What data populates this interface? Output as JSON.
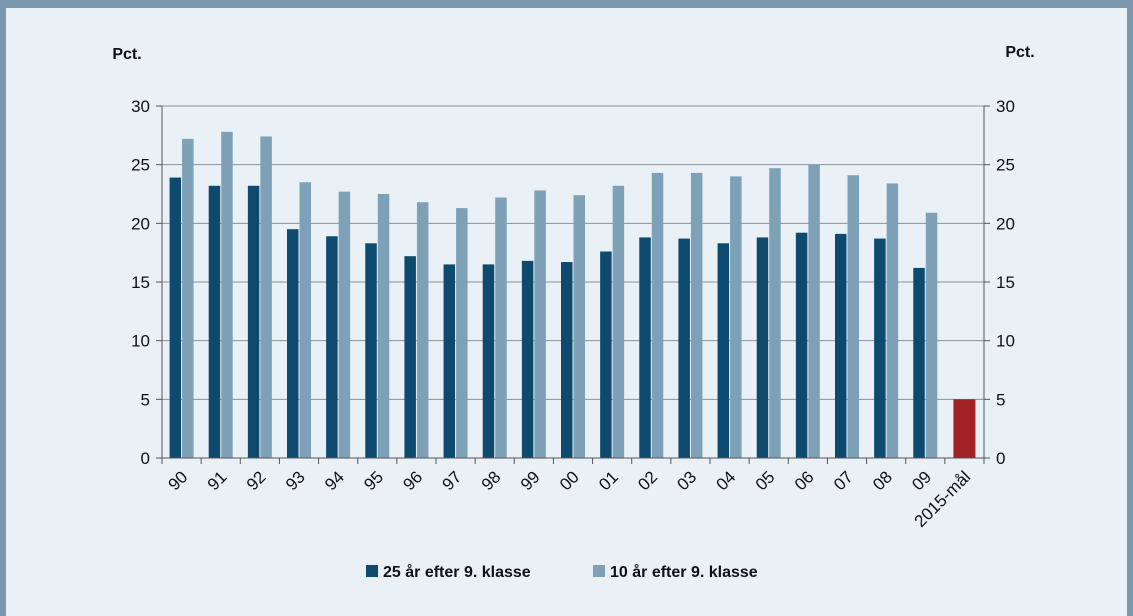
{
  "chart_data": {
    "type": "bar",
    "unit_left": "Pct.",
    "unit_right": "Pct.",
    "categories": [
      "90",
      "91",
      "92",
      "93",
      "94",
      "95",
      "96",
      "97",
      "98",
      "99",
      "00",
      "01",
      "02",
      "03",
      "04",
      "05",
      "06",
      "07",
      "08",
      "09",
      "2015-mål"
    ],
    "series": [
      {
        "name": "25 år efter 9. klasse",
        "color": "#0d4a6e",
        "values": [
          23.9,
          23.2,
          23.2,
          19.5,
          18.9,
          18.3,
          17.2,
          16.5,
          16.5,
          16.8,
          16.7,
          17.6,
          18.8,
          18.7,
          18.3,
          18.8,
          19.2,
          19.1,
          18.7,
          16.2,
          null
        ]
      },
      {
        "name": "10 år efter 9. klasse",
        "color": "#7fa1b8",
        "values": [
          27.2,
          27.8,
          27.4,
          23.5,
          22.7,
          22.5,
          21.8,
          21.3,
          22.2,
          22.8,
          22.4,
          23.2,
          24.3,
          24.3,
          24.0,
          24.7,
          25.0,
          24.1,
          23.4,
          20.9,
          null
        ]
      }
    ],
    "target": {
      "category": "2015-mål",
      "value": 5,
      "color": "#a02226"
    },
    "ylim": [
      0,
      30
    ],
    "yticks": [
      0,
      5,
      10,
      15,
      20,
      25,
      30
    ],
    "grid": true,
    "legend_position": "bottom-center"
  }
}
